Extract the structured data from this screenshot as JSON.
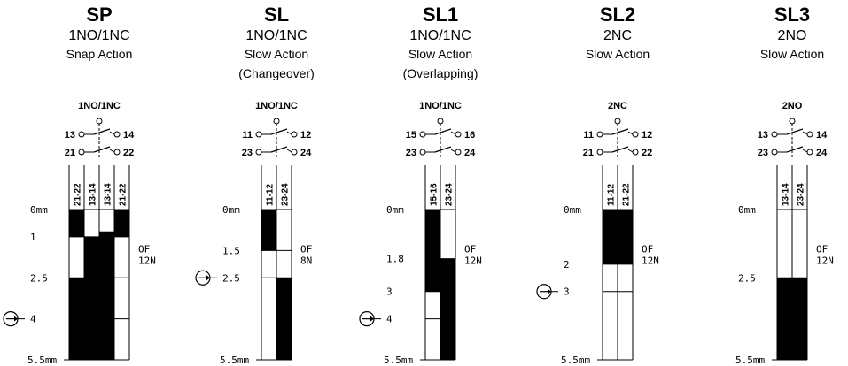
{
  "units": [
    {
      "code": "SP",
      "contacts": "1NO/1NC",
      "desc1": "Snap Action",
      "desc2": "",
      "symbol_label": "1NO/1NC",
      "top_left": "13",
      "top_right": "14",
      "bot_left": "21",
      "bot_right": "22",
      "columns": [
        {
          "label": "21-22",
          "closed": [
            [
              0,
              1.0
            ],
            [
              2.5,
              5.5
            ]
          ]
        },
        {
          "label": "13-14",
          "closed": [
            [
              1.0,
              5.5
            ]
          ]
        },
        {
          "label": "13-14",
          "closed": [
            [
              0.8,
              5.5
            ]
          ]
        },
        {
          "label": "21-22",
          "closed": [
            [
              0,
              1.0
            ]
          ]
        }
      ],
      "ticks": [
        {
          "label": "0mm",
          "value": 0
        },
        {
          "label": "1",
          "value": 1.0
        },
        {
          "label": "2.5",
          "value": 2.5
        },
        {
          "label": "4",
          "value": 4.0
        }
      ],
      "bottom_label": "5.5mm",
      "force": {
        "of": "OF",
        "n": "12N"
      },
      "pointer_value": 4.0
    },
    {
      "code": "SL",
      "contacts": "1NO/1NC",
      "desc1": "Slow Action",
      "desc2": "(Changeover)",
      "symbol_label": "1NO/1NC",
      "top_left": "11",
      "top_right": "12",
      "bot_left": "23",
      "bot_right": "24",
      "columns": [
        {
          "label": "11-12",
          "closed": [
            [
              0,
              1.5
            ]
          ]
        },
        {
          "label": "23-24",
          "closed": [
            [
              2.5,
              5.5
            ]
          ]
        }
      ],
      "ticks": [
        {
          "label": "0mm",
          "value": 0
        },
        {
          "label": "1.5",
          "value": 1.5
        },
        {
          "label": "2.5",
          "value": 2.5
        }
      ],
      "bottom_label": "5.5mm",
      "force": {
        "of": "OF",
        "n": "8N"
      },
      "pointer_value": 2.5
    },
    {
      "code": "SL1",
      "contacts": "1NO/1NC",
      "desc1": "Slow Action",
      "desc2": "(Overlapping)",
      "symbol_label": "1NO/1NC",
      "top_left": "15",
      "top_right": "16",
      "bot_left": "23",
      "bot_right": "24",
      "columns": [
        {
          "label": "15-16",
          "closed": [
            [
              0,
              3.0
            ]
          ]
        },
        {
          "label": "23-24",
          "closed": [
            [
              1.8,
              5.5
            ]
          ]
        }
      ],
      "ticks": [
        {
          "label": "0mm",
          "value": 0
        },
        {
          "label": "1.8",
          "value": 1.8
        },
        {
          "label": "3",
          "value": 3.0
        },
        {
          "label": "4",
          "value": 4.0
        }
      ],
      "bottom_label": "5.5mm",
      "force": {
        "of": "OF",
        "n": "12N"
      },
      "pointer_value": 4.0
    },
    {
      "code": "SL2",
      "contacts": "2NC",
      "desc1": "Slow Action",
      "desc2": "",
      "symbol_label": "2NC",
      "top_left": "11",
      "top_right": "12",
      "bot_left": "21",
      "bot_right": "22",
      "columns": [
        {
          "label": "11-12",
          "closed": [
            [
              0,
              2.0
            ]
          ]
        },
        {
          "label": "21-22",
          "closed": [
            [
              0,
              2.0
            ]
          ]
        }
      ],
      "ticks": [
        {
          "label": "0mm",
          "value": 0
        },
        {
          "label": "2",
          "value": 2.0
        },
        {
          "label": "3",
          "value": 3.0
        }
      ],
      "bottom_label": "5.5mm",
      "force": {
        "of": "OF",
        "n": "12N"
      },
      "pointer_value": 3.0
    },
    {
      "code": "SL3",
      "contacts": "2NO",
      "desc1": "Slow Action",
      "desc2": "",
      "symbol_label": "2NO",
      "top_left": "13",
      "top_right": "14",
      "bot_left": "23",
      "bot_right": "24",
      "columns": [
        {
          "label": "13-14",
          "closed": [
            [
              2.5,
              5.5
            ]
          ]
        },
        {
          "label": "23-24",
          "closed": [
            [
              2.5,
              5.5
            ]
          ]
        }
      ],
      "ticks": [
        {
          "label": "0mm",
          "value": 0
        },
        {
          "label": "2.5",
          "value": 2.5
        }
      ],
      "bottom_label": "5.5mm",
      "force": {
        "of": "OF",
        "n": "12N"
      },
      "pointer_value": null
    }
  ]
}
